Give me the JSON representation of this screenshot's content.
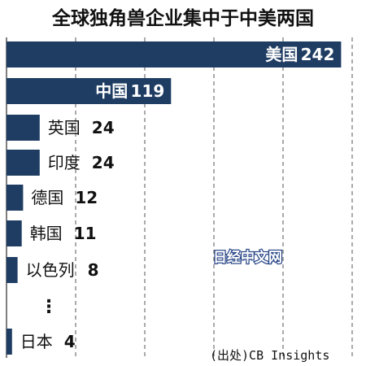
{
  "colors": {
    "bar": "#1f3d63",
    "grid": "#555555"
  },
  "watermark": "日经中文网",
  "ellipsis": "⋮",
  "chart_data": {
    "type": "bar",
    "orientation": "horizontal",
    "title": "全球独角兽企业集中于中美两国",
    "source": "(出处)CB Insights",
    "categories": [
      "美国",
      "中国",
      "英国",
      "印度",
      "德国",
      "韩国",
      "以色列",
      "日本"
    ],
    "values": [
      242,
      119,
      24,
      24,
      12,
      11,
      8,
      4
    ],
    "value_labels": [
      "242",
      "119",
      "24",
      "24",
      "12",
      "11",
      "8",
      "4"
    ],
    "xlim": [
      0,
      250
    ],
    "grid": true,
    "legend": "none"
  }
}
